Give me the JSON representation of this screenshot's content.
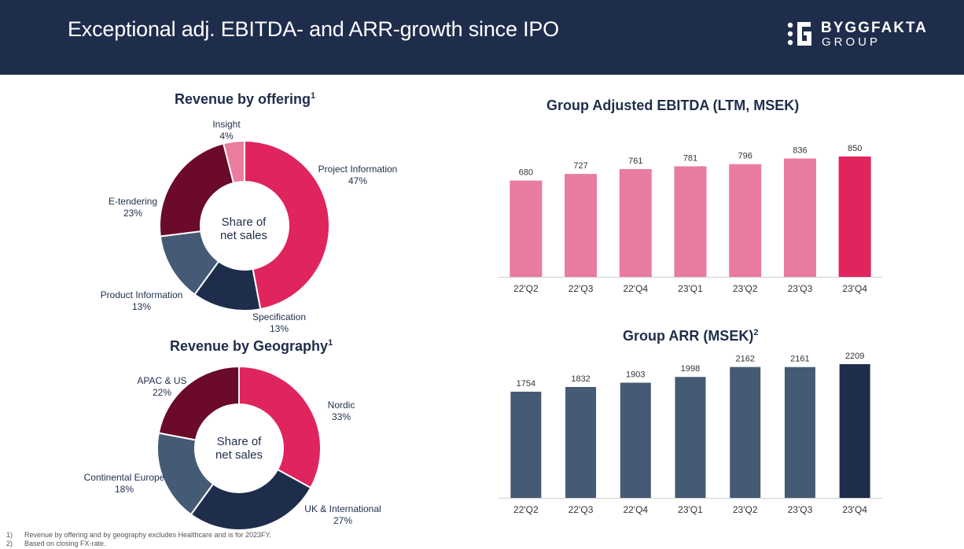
{
  "header": {
    "title": "Exceptional adj. EBITDA- and ARR-growth since IPO",
    "logo_name": "BYGGFAKTA",
    "logo_group": "GROUP"
  },
  "colors": {
    "header_bg": "#1f2d4c",
    "pink_light": "#e97c9e",
    "pink_strong": "#e0245e",
    "slate": "#455a74",
    "navy": "#1f2d4c",
    "maroon": "#6b0a2a"
  },
  "footnotes": [
    {
      "num": "1)",
      "text": "Revenue by offering and by geography excludes Healthcare and is for 2023FY."
    },
    {
      "num": "2)",
      "text": "Based on closing FX-rate."
    }
  ],
  "chart_data": [
    {
      "type": "pie",
      "title": "Revenue by offering",
      "title_sup": "1",
      "center_label": [
        "Share of",
        "net sales"
      ],
      "slices": [
        {
          "name": "Project Information",
          "value": 47,
          "label": "47%",
          "color": "#e0245e"
        },
        {
          "name": "Specification",
          "value": 13,
          "label": "13%",
          "color": "#1f2d4c"
        },
        {
          "name": "Product Information",
          "value": 13,
          "label": "13%",
          "color": "#455a74"
        },
        {
          "name": "E-tendering",
          "value": 23,
          "label": "23%",
          "color": "#6b0a2a"
        },
        {
          "name": "Insight",
          "value": 4,
          "label": "4%",
          "color": "#ea7d9e"
        }
      ]
    },
    {
      "type": "pie",
      "title": "Revenue by Geography",
      "title_sup": "1",
      "center_label": [
        "Share of",
        "net sales"
      ],
      "slices": [
        {
          "name": "Nordic",
          "value": 33,
          "label": "33%",
          "color": "#e0245e"
        },
        {
          "name": "UK & International",
          "value": 27,
          "label": "27%",
          "color": "#1f2d4c"
        },
        {
          "name": "Continental Europe",
          "value": 18,
          "label": "18%",
          "color": "#455a74"
        },
        {
          "name": "APAC & US",
          "value": 22,
          "label": "22%",
          "color": "#6b0a2a"
        }
      ]
    },
    {
      "type": "bar",
      "title": "Group Adjusted EBITDA (LTM, MSEK)",
      "title_sup": "",
      "categories": [
        "22'Q2",
        "22'Q3",
        "22'Q4",
        "23'Q1",
        "23'Q2",
        "23'Q3",
        "23'Q4"
      ],
      "values": [
        680,
        727,
        761,
        781,
        796,
        836,
        850
      ],
      "colors": [
        "#e97c9e",
        "#e97c9e",
        "#e97c9e",
        "#e97c9e",
        "#e97c9e",
        "#e97c9e",
        "#e0245e"
      ],
      "ylim": [
        0,
        850
      ],
      "grid": false
    },
    {
      "type": "bar",
      "title": "Group ARR (MSEK)",
      "title_sup": "2",
      "categories": [
        "22'Q2",
        "22'Q3",
        "22'Q4",
        "23'Q1",
        "23'Q2",
        "23'Q3",
        "23'Q4"
      ],
      "values": [
        1754,
        1832,
        1903,
        1998,
        2162,
        2161,
        2209
      ],
      "colors": [
        "#455a74",
        "#455a74",
        "#455a74",
        "#455a74",
        "#455a74",
        "#455a74",
        "#1f2d4c"
      ],
      "ylim": [
        0,
        2209
      ],
      "grid": false
    }
  ]
}
